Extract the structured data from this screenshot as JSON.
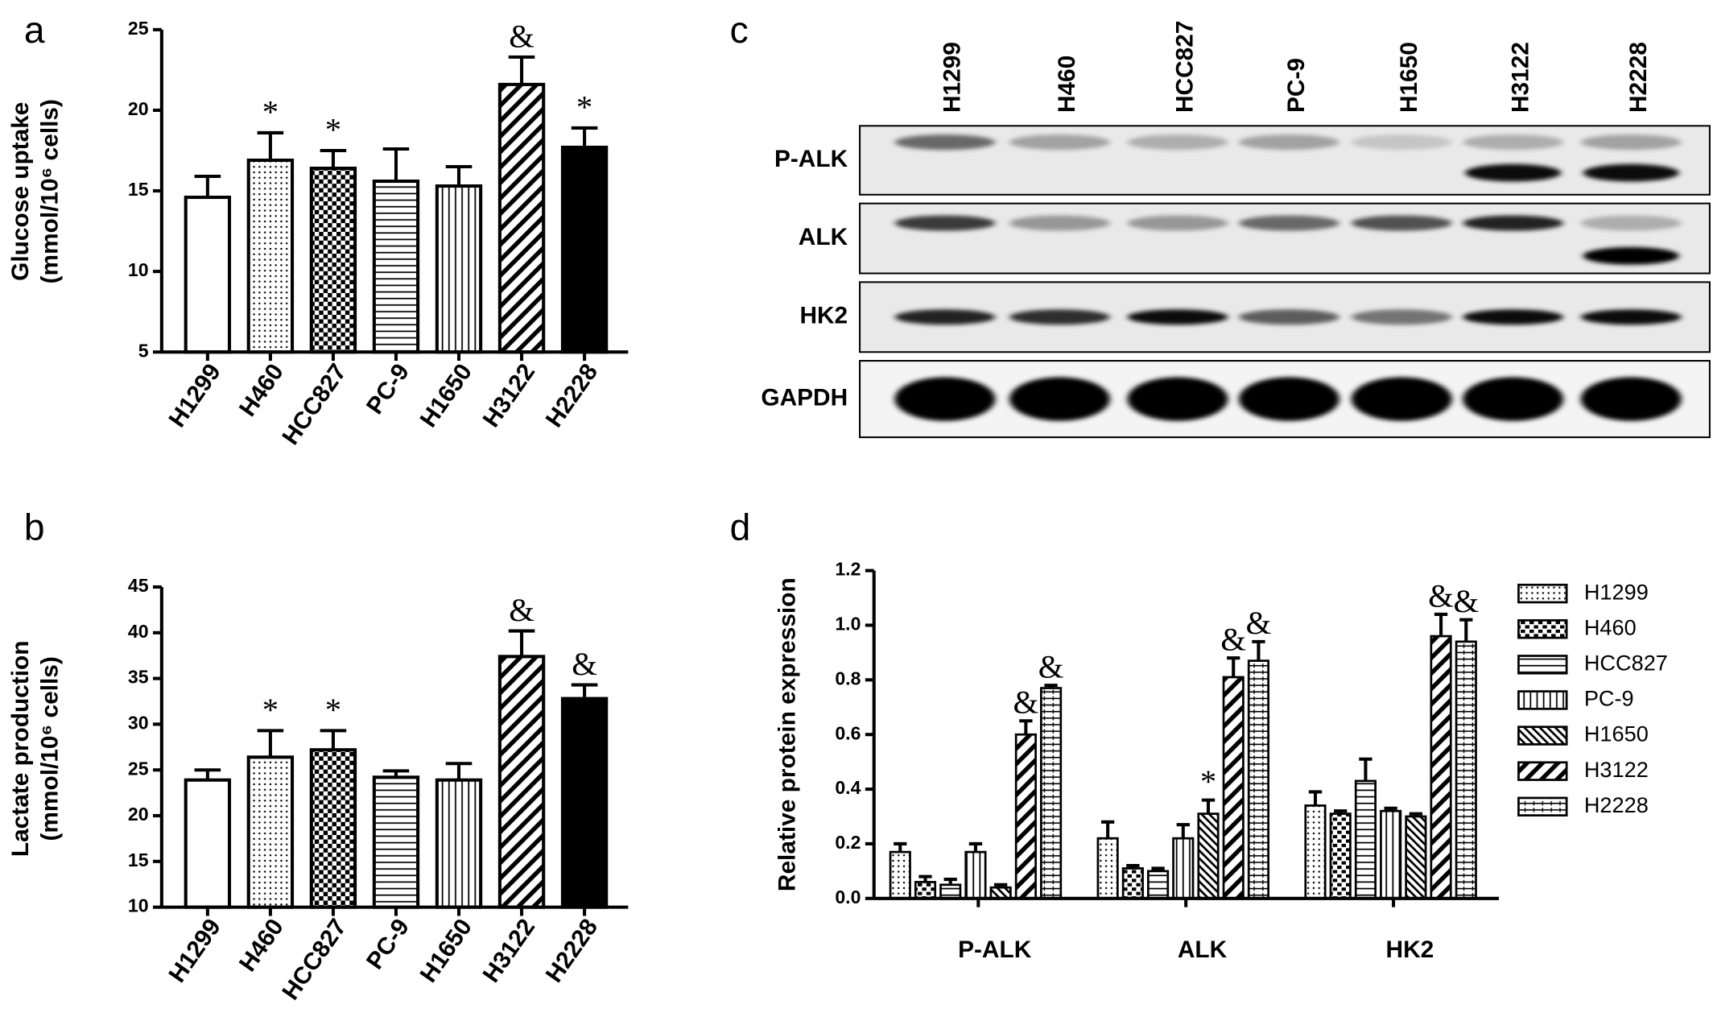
{
  "chart_data": [
    {
      "type": "bar",
      "panel": "a",
      "ylabel": [
        "Glucose uptake",
        "(mmol/10⁶ cells)"
      ],
      "categories": [
        "H1299",
        "H460",
        "HCC827",
        "PC-9",
        "H1650",
        "H3122",
        "H2228"
      ],
      "values": [
        14.6,
        16.9,
        16.4,
        15.6,
        15.3,
        21.6,
        17.7
      ],
      "errors": [
        1.3,
        1.7,
        1.1,
        2.0,
        1.2,
        1.7,
        1.2
      ],
      "annotations": [
        null,
        "*",
        "*",
        null,
        null,
        "&",
        "*"
      ],
      "patterns": [
        "none",
        "dots",
        "checker",
        "hlines",
        "vlines",
        "diagonal",
        "solid"
      ],
      "ylim": [
        5,
        25
      ],
      "yticks": [
        5,
        10,
        15,
        20,
        25
      ]
    },
    {
      "type": "bar",
      "panel": "b",
      "ylabel": [
        "Lactate production",
        "(mmol/10⁶ cells)"
      ],
      "categories": [
        "H1299",
        "H460",
        "HCC827",
        "PC-9",
        "H1650",
        "H3122",
        "H2228"
      ],
      "values": [
        23.9,
        26.4,
        27.2,
        24.2,
        23.9,
        37.4,
        32.8
      ],
      "errors": [
        1.1,
        2.9,
        2.1,
        0.7,
        1.8,
        2.8,
        1.5
      ],
      "annotations": [
        null,
        "*",
        "*",
        null,
        null,
        "&",
        "&"
      ],
      "patterns": [
        "none",
        "dots",
        "checker",
        "hlines",
        "vlines",
        "diagonal",
        "solid"
      ],
      "ylim": [
        10,
        45
      ],
      "yticks": [
        10,
        15,
        20,
        25,
        30,
        35,
        40,
        45
      ]
    },
    {
      "type": "blot",
      "panel": "c",
      "lanes": [
        "H1299",
        "H460",
        "HCC827",
        "PC-9",
        "H1650",
        "H3122",
        "H2228"
      ],
      "rows": [
        "P-ALK",
        "ALK",
        "HK2",
        "GAPDH"
      ]
    },
    {
      "type": "grouped_bar",
      "panel": "d",
      "ylabel": "Relative protein expression",
      "categories": [
        "P-ALK",
        "ALK",
        "HK2"
      ],
      "series": [
        {
          "name": "H1299",
          "pattern": "dots",
          "values": [
            0.17,
            0.22,
            0.34
          ],
          "errors": [
            0.03,
            0.06,
            0.05
          ],
          "annotations": [
            null,
            null,
            null
          ]
        },
        {
          "name": "H460",
          "pattern": "brick",
          "values": [
            0.06,
            0.11,
            0.31
          ],
          "errors": [
            0.02,
            0.01,
            0.01
          ],
          "annotations": [
            null,
            null,
            null
          ]
        },
        {
          "name": "HCC827",
          "pattern": "hlines",
          "values": [
            0.05,
            0.1,
            0.43
          ],
          "errors": [
            0.02,
            0.01,
            0.08
          ],
          "annotations": [
            null,
            null,
            null
          ]
        },
        {
          "name": "PC-9",
          "pattern": "vlines",
          "values": [
            0.17,
            0.22,
            0.32
          ],
          "errors": [
            0.03,
            0.05,
            0.01
          ],
          "annotations": [
            null,
            null,
            null
          ]
        },
        {
          "name": "H1650",
          "pattern": "diagonal-thin",
          "values": [
            0.04,
            0.31,
            0.3
          ],
          "errors": [
            0.01,
            0.05,
            0.01
          ],
          "annotations": [
            null,
            "*",
            null
          ]
        },
        {
          "name": "H3122",
          "pattern": "diagonal",
          "values": [
            0.6,
            0.81,
            0.96
          ],
          "errors": [
            0.05,
            0.07,
            0.08
          ],
          "annotations": [
            "&",
            "&",
            "&"
          ]
        },
        {
          "name": "H2228",
          "pattern": "hcross",
          "values": [
            0.77,
            0.87,
            0.94
          ],
          "errors": [
            0.01,
            0.07,
            0.08
          ],
          "annotations": [
            "&",
            "&",
            "&"
          ]
        }
      ],
      "ylim": [
        0,
        1.2
      ],
      "yticks": [
        {
          "value": 0,
          "label": "0.0"
        },
        0.2,
        0.4,
        0.6,
        0.8,
        {
          "value": 1,
          "label": "1.0"
        },
        1.2
      ],
      "legend": "right"
    }
  ]
}
